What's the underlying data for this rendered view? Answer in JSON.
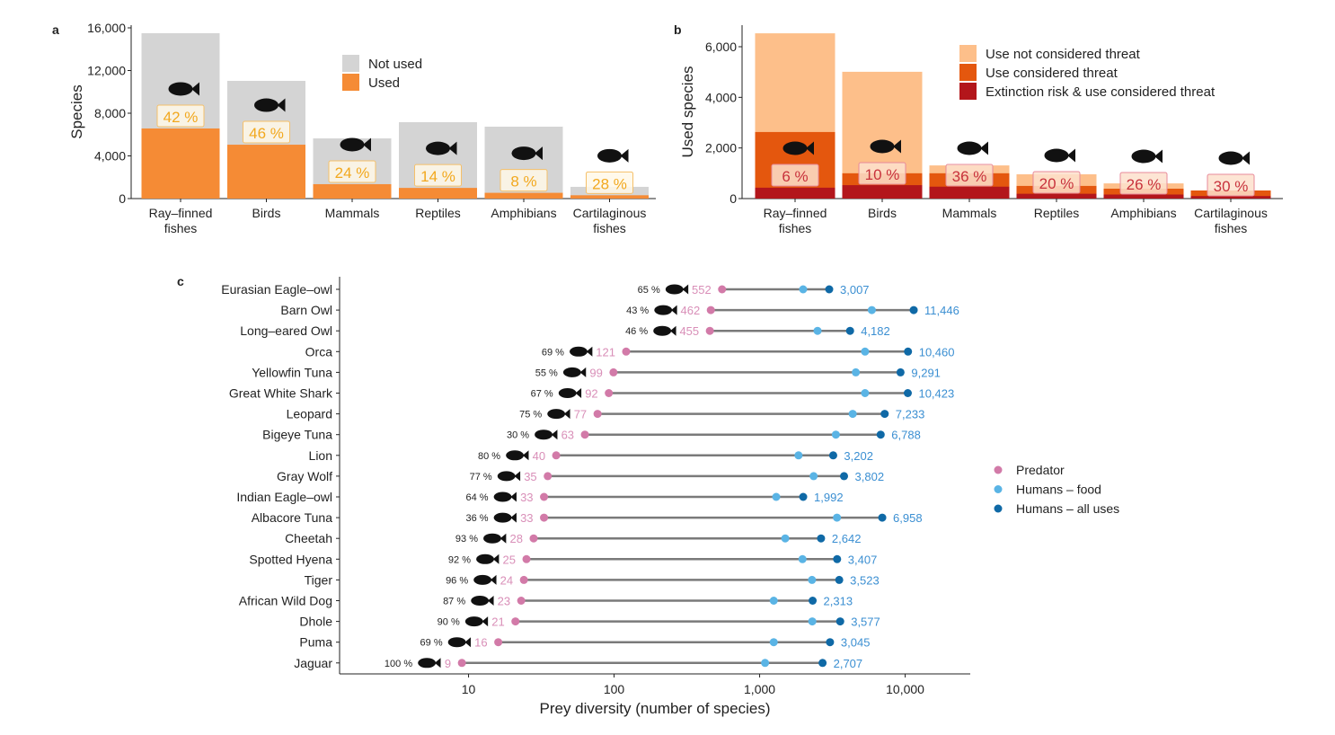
{
  "chart_data": [
    {
      "panel": "a",
      "type": "bar",
      "stacked": true,
      "ylabel": "Species",
      "ylim": [
        0,
        16000
      ],
      "yticks": [
        "0",
        "4,000",
        "8,000",
        "12,000",
        "16,000"
      ],
      "ytick_values": [
        0,
        4000,
        8000,
        12000,
        16000
      ],
      "categories": [
        "Ray–finned\nfishes",
        "Birds",
        "Mammals",
        "Reptiles",
        "Amphibians",
        "Cartilaginous\nfishes"
      ],
      "legend_position": "top-center",
      "series": [
        {
          "name": "Not used",
          "color": "#d4d4d4",
          "totals": [
            15500,
            11030,
            5640,
            7160,
            6740,
            1100
          ]
        },
        {
          "name": "Used",
          "color": "#f58b35",
          "values": [
            6570,
            5050,
            1350,
            1000,
            540,
            310
          ]
        }
      ],
      "data_labels": [
        "42 %",
        "46 %",
        "24 %",
        "14 %",
        "8 %",
        "28 %"
      ],
      "icons": [
        "fish-icon",
        "bird-icon",
        "boar-icon",
        "chameleon-icon",
        "frog-icon",
        "shark-icon"
      ]
    },
    {
      "panel": "b",
      "type": "bar",
      "stacked": true,
      "ylabel": "Used species",
      "ylim": [
        0,
        6800
      ],
      "yticks": [
        "0",
        "2,000",
        "4,000",
        "6,000"
      ],
      "ytick_values": [
        0,
        2000,
        4000,
        6000
      ],
      "categories": [
        "Ray–finned\nfishes",
        "Birds",
        "Mammals",
        "Reptiles",
        "Amphibians",
        "Cartilaginous\nfishes"
      ],
      "legend_position": "top-right",
      "series": [
        {
          "name": "Use not considered threat",
          "color": "#fdbf8a",
          "totals": [
            6530,
            5010,
            1310,
            960,
            600,
            320
          ]
        },
        {
          "name": "Use considered threat",
          "color": "#e4570e",
          "totals": [
            2630,
            1000,
            1000,
            500,
            390,
            320
          ]
        },
        {
          "name": "Extinction risk & use considered threat",
          "color": "#b3161b",
          "values": [
            430,
            530,
            470,
            190,
            160,
            100
          ]
        }
      ],
      "data_labels": [
        "6 %",
        "10 %",
        "36 %",
        "20 %",
        "26 %",
        "30 %"
      ],
      "icons": [
        "fish-icon",
        "bird-icon",
        "boar-icon",
        "chameleon-icon",
        "frog-icon",
        "shark-icon"
      ]
    },
    {
      "panel": "c",
      "type": "dumbbell",
      "xlabel": "Prey diversity (number of species)",
      "xscale": "log",
      "xlim": [
        1.3,
        28000
      ],
      "xticks": [
        "10",
        "100",
        "1,000",
        "10,000"
      ],
      "xtick_values": [
        10,
        100,
        1000,
        10000
      ],
      "legend_position": "right",
      "legend": [
        {
          "name": "Predator",
          "color": "#d27aa8"
        },
        {
          "name": "Humans – food",
          "color": "#5ab4e5"
        },
        {
          "name": "Humans – all uses",
          "color": "#0f69a6"
        }
      ],
      "rows": [
        {
          "species": "Eurasian Eagle–owl",
          "pct": "65 %",
          "predator": 552,
          "predator_label": "552",
          "food": 1990,
          "all": 3007,
          "all_label": "3,007",
          "icon": "owl-icon"
        },
        {
          "species": "Barn Owl",
          "pct": "43 %",
          "predator": 462,
          "predator_label": "462",
          "food": 5900,
          "all": 11446,
          "all_label": "11,446",
          "icon": "owl-icon"
        },
        {
          "species": "Long–eared Owl",
          "pct": "46 %",
          "predator": 455,
          "predator_label": "455",
          "food": 2500,
          "all": 4182,
          "all_label": "4,182",
          "icon": "owl-icon"
        },
        {
          "species": "Orca",
          "pct": "69 %",
          "predator": 121,
          "predator_label": "121",
          "food": 5300,
          "all": 10460,
          "all_label": "10,460",
          "icon": "orca-icon"
        },
        {
          "species": "Yellowfin Tuna",
          "pct": "55 %",
          "predator": 99,
          "predator_label": "99",
          "food": 4580,
          "all": 9291,
          "all_label": "9,291",
          "icon": "tuna-icon"
        },
        {
          "species": "Great White Shark",
          "pct": "67 %",
          "predator": 92,
          "predator_label": "92",
          "food": 5300,
          "all": 10423,
          "all_label": "10,423",
          "icon": "shark-icon"
        },
        {
          "species": "Leopard",
          "pct": "75 %",
          "predator": 77,
          "predator_label": "77",
          "food": 4360,
          "all": 7233,
          "all_label": "7,233",
          "icon": "leopard-icon"
        },
        {
          "species": "Bigeye Tuna",
          "pct": "30 %",
          "predator": 63,
          "predator_label": "63",
          "food": 3340,
          "all": 6788,
          "all_label": "6,788",
          "icon": "tuna-icon"
        },
        {
          "species": "Lion",
          "pct": "80 %",
          "predator": 40,
          "predator_label": "40",
          "food": 1850,
          "all": 3202,
          "all_label": "3,202",
          "icon": "lion-icon"
        },
        {
          "species": "Gray Wolf",
          "pct": "77 %",
          "predator": 35,
          "predator_label": "35",
          "food": 2350,
          "all": 3802,
          "all_label": "3,802",
          "icon": "wolf-icon"
        },
        {
          "species": "Indian Eagle–owl",
          "pct": "64 %",
          "predator": 33,
          "predator_label": "33",
          "food": 1300,
          "all": 1992,
          "all_label": "1,992",
          "icon": "owl-icon"
        },
        {
          "species": "Albacore Tuna",
          "pct": "36 %",
          "predator": 33,
          "predator_label": "33",
          "food": 3400,
          "all": 6958,
          "all_label": "6,958",
          "icon": "tuna-icon"
        },
        {
          "species": "Cheetah",
          "pct": "93 %",
          "predator": 28,
          "predator_label": "28",
          "food": 1500,
          "all": 2642,
          "all_label": "2,642",
          "icon": "cheetah-icon"
        },
        {
          "species": "Spotted Hyena",
          "pct": "92 %",
          "predator": 25,
          "predator_label": "25",
          "food": 1970,
          "all": 3407,
          "all_label": "3,407",
          "icon": "hyena-icon"
        },
        {
          "species": "Tiger",
          "pct": "96 %",
          "predator": 24,
          "predator_label": "24",
          "food": 2290,
          "all": 3523,
          "all_label": "3,523",
          "icon": "tiger-icon"
        },
        {
          "species": "African Wild Dog",
          "pct": "87 %",
          "predator": 23,
          "predator_label": "23",
          "food": 1250,
          "all": 2313,
          "all_label": "2,313",
          "icon": "wild-dog-icon"
        },
        {
          "species": "Dhole",
          "pct": "90 %",
          "predator": 21,
          "predator_label": "21",
          "food": 2300,
          "all": 3577,
          "all_label": "3,577",
          "icon": "dhole-icon"
        },
        {
          "species": "Puma",
          "pct": "69 %",
          "predator": 16,
          "predator_label": "16",
          "food": 1250,
          "all": 3045,
          "all_label": "3,045",
          "icon": "puma-icon"
        },
        {
          "species": "Jaguar",
          "pct": "100 %",
          "predator": 9,
          "predator_label": "9",
          "food": 1090,
          "all": 2707,
          "all_label": "2,707",
          "icon": "jaguar-icon"
        }
      ]
    }
  ],
  "panel_letters": [
    "a",
    "b",
    "c"
  ]
}
